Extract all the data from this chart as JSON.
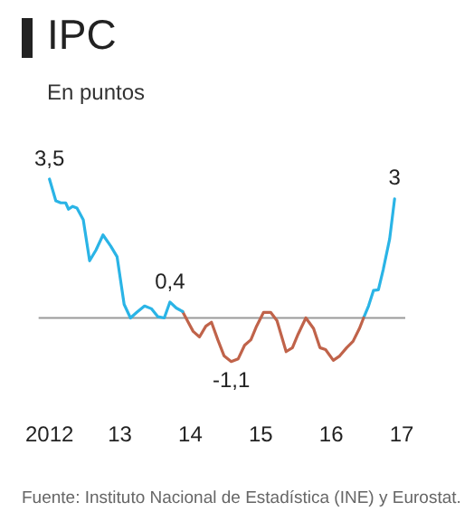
{
  "chart_data": {
    "type": "line",
    "title": "IPC",
    "subtitle": "En puntos",
    "annotations": [
      "Fuente: Instituto Nacional de Estadística (INE) y Eurostat."
    ],
    "xlim": [
      2012,
      2017
    ],
    "xticks": [
      {
        "value": 2012,
        "label": "2012"
      },
      {
        "value": 2013,
        "label": "13"
      },
      {
        "value": 2014,
        "label": "14"
      },
      {
        "value": 2015,
        "label": "15"
      },
      {
        "value": 2016,
        "label": "16"
      },
      {
        "value": 2017,
        "label": "17"
      }
    ],
    "tick_labels": "x",
    "grid": false,
    "legend": false,
    "marker": "none",
    "line_style": "solid",
    "ref_lines": [
      {
        "axis": "y",
        "value": 0,
        "color": "#999999"
      }
    ],
    "series": [
      {
        "color": "#2ab4e6",
        "x": [
          2012.0,
          2012.09,
          2012.16,
          2012.23,
          2012.27,
          2012.33,
          2012.39,
          2012.48,
          2012.57,
          2012.66,
          2012.76,
          2012.87,
          2012.96,
          2013.06,
          2013.15,
          2013.24,
          2013.35,
          2013.45,
          2013.54,
          2013.63,
          2013.71,
          2013.8,
          2013.89
        ],
        "values": [
          3.5,
          2.95,
          2.9,
          2.9,
          2.74,
          2.81,
          2.77,
          2.47,
          1.44,
          1.71,
          2.09,
          1.81,
          1.54,
          0.34,
          0,
          0.14,
          0.3,
          0.23,
          0.03,
          0,
          0.4,
          0.25,
          0.16
        ],
        "value_labels": [
          "3,5",
          null,
          null,
          null,
          null,
          null,
          null,
          null,
          null,
          null,
          null,
          null,
          null,
          null,
          null,
          null,
          null,
          null,
          null,
          null,
          "0,4",
          null,
          null
        ]
      },
      {
        "color": "#c0634a",
        "x": [
          2013.89,
          2013.97,
          2014.04,
          2014.13,
          2014.22,
          2014.3,
          2014.39,
          2014.48,
          2014.58,
          2014.68,
          2014.77,
          2014.86,
          2014.94,
          2015.04,
          2015.14,
          2015.23,
          2015.36,
          2015.45,
          2015.53,
          2015.64,
          2015.75,
          2015.84,
          2015.92,
          2016.03,
          2016.12,
          2016.22,
          2016.31,
          2016.4,
          2016.46
        ],
        "values": [
          0.16,
          -0.11,
          -0.34,
          -0.48,
          -0.21,
          -0.11,
          -0.55,
          -0.96,
          -1.1,
          -1.03,
          -0.69,
          -0.55,
          -0.21,
          0.14,
          0.14,
          -0.07,
          -0.85,
          -0.75,
          -0.41,
          0,
          -0.27,
          -0.75,
          -0.8,
          -1.07,
          -0.96,
          -0.75,
          -0.59,
          -0.27,
          0
        ],
        "value_labels": [
          null,
          null,
          null,
          null,
          null,
          null,
          null,
          null,
          "-1,1",
          null,
          null,
          null,
          null,
          null,
          null,
          null,
          null,
          null,
          null,
          null,
          null,
          null,
          null,
          null,
          null,
          null,
          null,
          null,
          null
        ]
      },
      {
        "color": "#2ab4e6",
        "x": [
          2016.46,
          2016.53,
          2016.6,
          2016.67,
          2016.74,
          2016.83,
          2016.9
        ],
        "values": [
          0,
          0.3,
          0.69,
          0.71,
          1.23,
          1.99,
          3.0
        ],
        "value_labels": [
          null,
          null,
          null,
          null,
          null,
          null,
          "3"
        ]
      }
    ]
  }
}
